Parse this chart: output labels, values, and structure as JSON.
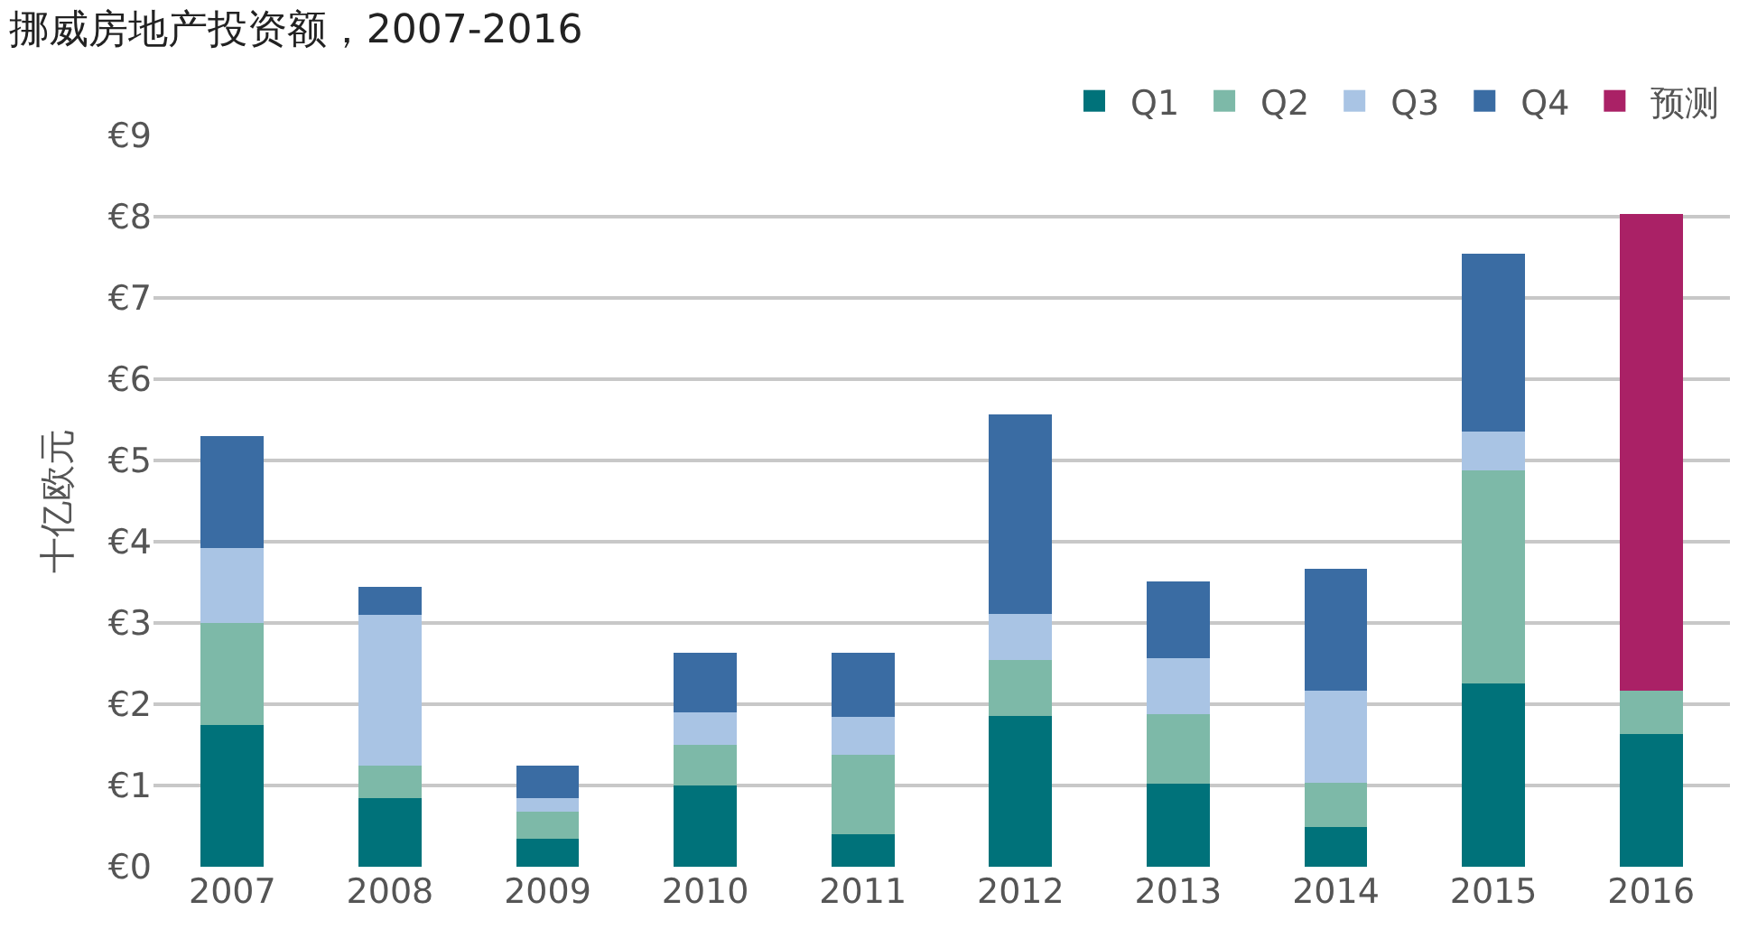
{
  "chart_data": {
    "type": "bar",
    "title": "挪威房地产投资额，2007-2016",
    "ylabel": "十亿欧元",
    "stacked": true,
    "grid": "y",
    "legend": "top right",
    "categories": [
      "2007",
      "2008",
      "2009",
      "2010",
      "2011",
      "2012",
      "2013",
      "2014",
      "2015",
      "2016"
    ],
    "series": [
      {
        "name": "Q1",
        "color": "#00727a",
        "values": [
          1.75,
          0.85,
          0.35,
          1.0,
          0.4,
          1.86,
          1.02,
          0.49,
          2.26,
          1.63
        ]
      },
      {
        "name": "Q2",
        "color": "#7db9a8",
        "values": [
          1.25,
          0.4,
          0.33,
          0.5,
          0.98,
          0.68,
          0.86,
          0.54,
          2.62,
          0.54
        ]
      },
      {
        "name": "Q3",
        "color": "#a9c4e4",
        "values": [
          0.92,
          1.85,
          0.17,
          0.4,
          0.47,
          0.57,
          0.69,
          1.14,
          0.48,
          null
        ]
      },
      {
        "name": "Q4",
        "color": "#3a6ca3",
        "values": [
          1.38,
          0.35,
          0.4,
          0.73,
          0.78,
          2.46,
          0.94,
          1.5,
          2.19,
          null
        ]
      },
      {
        "name": "预测",
        "color": "#aa2166",
        "values": [
          null,
          null,
          null,
          null,
          null,
          null,
          null,
          null,
          null,
          5.86
        ]
      }
    ],
    "ylim": [
      0,
      9
    ],
    "yticks": [
      {
        "value": 0,
        "label": "€0"
      },
      {
        "value": 1,
        "label": "€1"
      },
      {
        "value": 2,
        "label": "€2"
      },
      {
        "value": 3,
        "label": "€3"
      },
      {
        "value": 4,
        "label": "€4"
      },
      {
        "value": 5,
        "label": "€5"
      },
      {
        "value": 6,
        "label": "€6"
      },
      {
        "value": 7,
        "label": "€7"
      },
      {
        "value": 8,
        "label": "€8"
      },
      {
        "value": 9,
        "label": "€9"
      }
    ]
  }
}
